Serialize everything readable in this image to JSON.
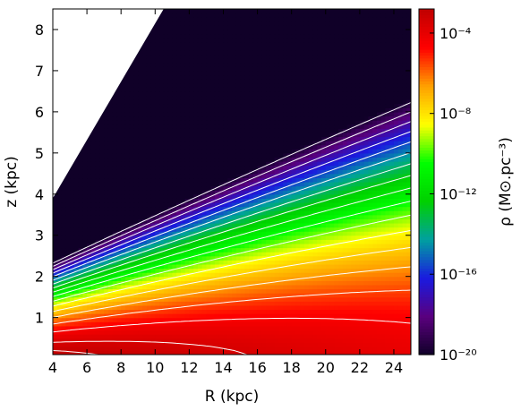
{
  "chart_data": {
    "type": "heatmap",
    "title": "",
    "xlabel": "R (kpc)",
    "ylabel": "z (kpc)",
    "xlim": [
      4,
      25
    ],
    "ylim": [
      0.1,
      8.5
    ],
    "xticks": [
      "4",
      "6",
      "8",
      "10",
      "12",
      "14",
      "16",
      "18",
      "20",
      "22",
      "24"
    ],
    "xtick_values": [
      4,
      6,
      8,
      10,
      12,
      14,
      16,
      18,
      20,
      22,
      24
    ],
    "yticks": [
      "1",
      "2",
      "3",
      "4",
      "5",
      "6",
      "7",
      "8"
    ],
    "ytick_values": [
      1,
      2,
      3,
      4,
      5,
      6,
      7,
      8
    ],
    "colorbar": {
      "label": "ρ (M⊙.pc⁻³)",
      "scale": "log",
      "range": [
        -20,
        -2.8
      ],
      "ticks": [
        "10⁻⁴",
        "10⁻⁸",
        "10⁻¹²",
        "10⁻¹⁶",
        "10⁻²⁰"
      ],
      "tick_exponents": [
        -4,
        -8,
        -12,
        -16,
        -20
      ],
      "colormap": [
        "#100028",
        "#5a007e",
        "#1a1ae0",
        "#00a0a0",
        "#00d000",
        "#00ff00",
        "#ffff00",
        "#ffa000",
        "#ff0000",
        "#c00000"
      ]
    },
    "masked_region": {
      "description": "no data above line",
      "edge_points": [
        [
          4,
          3.9
        ],
        [
          10.5,
          8.5
        ]
      ]
    },
    "contours": {
      "color": "#ffffff",
      "levels_log_rho": [
        -3.0,
        -3.5,
        -4.5,
        -5.5,
        -6.5,
        -7.5,
        -8.5,
        -9.5,
        -10.5,
        -11.5,
        -12.5,
        -13.5,
        -14.5,
        -15.5,
        -16.5,
        -17.5,
        -18.5,
        -19.5
      ]
    }
  }
}
